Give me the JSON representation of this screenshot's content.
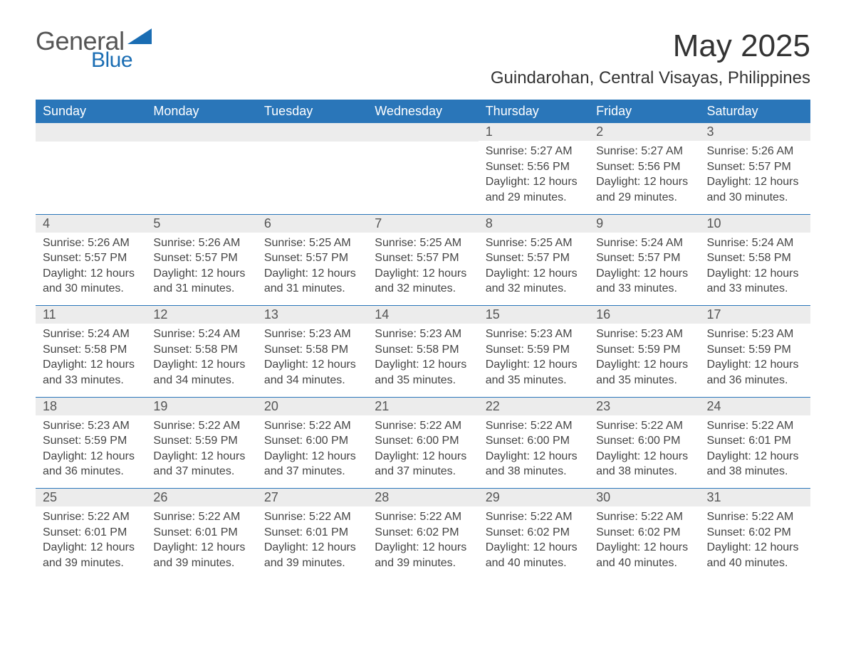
{
  "brand": {
    "general": "General",
    "blue": "Blue"
  },
  "colors": {
    "header_bg": "#2a76b9",
    "header_text": "#ffffff",
    "daynum_bg": "#ececec",
    "rule": "#2a76b9",
    "logo_general": "#555555",
    "logo_blue": "#1a6db3",
    "text": "#333333",
    "body_bg": "#ffffff"
  },
  "fonts": {
    "month_title_pt": 44,
    "location_pt": 24,
    "weekday_pt": 18,
    "daynum_pt": 18,
    "body_pt": 16
  },
  "title": {
    "month": "May 2025",
    "location": "Guindarohan, Central Visayas, Philippines"
  },
  "weekdays": [
    "Sunday",
    "Monday",
    "Tuesday",
    "Wednesday",
    "Thursday",
    "Friday",
    "Saturday"
  ],
  "weeks": [
    [
      null,
      null,
      null,
      null,
      {
        "n": "1",
        "sr": "Sunrise: 5:27 AM",
        "ss": "Sunset: 5:56 PM",
        "dl1": "Daylight: 12 hours",
        "dl2": "and 29 minutes."
      },
      {
        "n": "2",
        "sr": "Sunrise: 5:27 AM",
        "ss": "Sunset: 5:56 PM",
        "dl1": "Daylight: 12 hours",
        "dl2": "and 29 minutes."
      },
      {
        "n": "3",
        "sr": "Sunrise: 5:26 AM",
        "ss": "Sunset: 5:57 PM",
        "dl1": "Daylight: 12 hours",
        "dl2": "and 30 minutes."
      }
    ],
    [
      {
        "n": "4",
        "sr": "Sunrise: 5:26 AM",
        "ss": "Sunset: 5:57 PM",
        "dl1": "Daylight: 12 hours",
        "dl2": "and 30 minutes."
      },
      {
        "n": "5",
        "sr": "Sunrise: 5:26 AM",
        "ss": "Sunset: 5:57 PM",
        "dl1": "Daylight: 12 hours",
        "dl2": "and 31 minutes."
      },
      {
        "n": "6",
        "sr": "Sunrise: 5:25 AM",
        "ss": "Sunset: 5:57 PM",
        "dl1": "Daylight: 12 hours",
        "dl2": "and 31 minutes."
      },
      {
        "n": "7",
        "sr": "Sunrise: 5:25 AM",
        "ss": "Sunset: 5:57 PM",
        "dl1": "Daylight: 12 hours",
        "dl2": "and 32 minutes."
      },
      {
        "n": "8",
        "sr": "Sunrise: 5:25 AM",
        "ss": "Sunset: 5:57 PM",
        "dl1": "Daylight: 12 hours",
        "dl2": "and 32 minutes."
      },
      {
        "n": "9",
        "sr": "Sunrise: 5:24 AM",
        "ss": "Sunset: 5:57 PM",
        "dl1": "Daylight: 12 hours",
        "dl2": "and 33 minutes."
      },
      {
        "n": "10",
        "sr": "Sunrise: 5:24 AM",
        "ss": "Sunset: 5:58 PM",
        "dl1": "Daylight: 12 hours",
        "dl2": "and 33 minutes."
      }
    ],
    [
      {
        "n": "11",
        "sr": "Sunrise: 5:24 AM",
        "ss": "Sunset: 5:58 PM",
        "dl1": "Daylight: 12 hours",
        "dl2": "and 33 minutes."
      },
      {
        "n": "12",
        "sr": "Sunrise: 5:24 AM",
        "ss": "Sunset: 5:58 PM",
        "dl1": "Daylight: 12 hours",
        "dl2": "and 34 minutes."
      },
      {
        "n": "13",
        "sr": "Sunrise: 5:23 AM",
        "ss": "Sunset: 5:58 PM",
        "dl1": "Daylight: 12 hours",
        "dl2": "and 34 minutes."
      },
      {
        "n": "14",
        "sr": "Sunrise: 5:23 AM",
        "ss": "Sunset: 5:58 PM",
        "dl1": "Daylight: 12 hours",
        "dl2": "and 35 minutes."
      },
      {
        "n": "15",
        "sr": "Sunrise: 5:23 AM",
        "ss": "Sunset: 5:59 PM",
        "dl1": "Daylight: 12 hours",
        "dl2": "and 35 minutes."
      },
      {
        "n": "16",
        "sr": "Sunrise: 5:23 AM",
        "ss": "Sunset: 5:59 PM",
        "dl1": "Daylight: 12 hours",
        "dl2": "and 35 minutes."
      },
      {
        "n": "17",
        "sr": "Sunrise: 5:23 AM",
        "ss": "Sunset: 5:59 PM",
        "dl1": "Daylight: 12 hours",
        "dl2": "and 36 minutes."
      }
    ],
    [
      {
        "n": "18",
        "sr": "Sunrise: 5:23 AM",
        "ss": "Sunset: 5:59 PM",
        "dl1": "Daylight: 12 hours",
        "dl2": "and 36 minutes."
      },
      {
        "n": "19",
        "sr": "Sunrise: 5:22 AM",
        "ss": "Sunset: 5:59 PM",
        "dl1": "Daylight: 12 hours",
        "dl2": "and 37 minutes."
      },
      {
        "n": "20",
        "sr": "Sunrise: 5:22 AM",
        "ss": "Sunset: 6:00 PM",
        "dl1": "Daylight: 12 hours",
        "dl2": "and 37 minutes."
      },
      {
        "n": "21",
        "sr": "Sunrise: 5:22 AM",
        "ss": "Sunset: 6:00 PM",
        "dl1": "Daylight: 12 hours",
        "dl2": "and 37 minutes."
      },
      {
        "n": "22",
        "sr": "Sunrise: 5:22 AM",
        "ss": "Sunset: 6:00 PM",
        "dl1": "Daylight: 12 hours",
        "dl2": "and 38 minutes."
      },
      {
        "n": "23",
        "sr": "Sunrise: 5:22 AM",
        "ss": "Sunset: 6:00 PM",
        "dl1": "Daylight: 12 hours",
        "dl2": "and 38 minutes."
      },
      {
        "n": "24",
        "sr": "Sunrise: 5:22 AM",
        "ss": "Sunset: 6:01 PM",
        "dl1": "Daylight: 12 hours",
        "dl2": "and 38 minutes."
      }
    ],
    [
      {
        "n": "25",
        "sr": "Sunrise: 5:22 AM",
        "ss": "Sunset: 6:01 PM",
        "dl1": "Daylight: 12 hours",
        "dl2": "and 39 minutes."
      },
      {
        "n": "26",
        "sr": "Sunrise: 5:22 AM",
        "ss": "Sunset: 6:01 PM",
        "dl1": "Daylight: 12 hours",
        "dl2": "and 39 minutes."
      },
      {
        "n": "27",
        "sr": "Sunrise: 5:22 AM",
        "ss": "Sunset: 6:01 PM",
        "dl1": "Daylight: 12 hours",
        "dl2": "and 39 minutes."
      },
      {
        "n": "28",
        "sr": "Sunrise: 5:22 AM",
        "ss": "Sunset: 6:02 PM",
        "dl1": "Daylight: 12 hours",
        "dl2": "and 39 minutes."
      },
      {
        "n": "29",
        "sr": "Sunrise: 5:22 AM",
        "ss": "Sunset: 6:02 PM",
        "dl1": "Daylight: 12 hours",
        "dl2": "and 40 minutes."
      },
      {
        "n": "30",
        "sr": "Sunrise: 5:22 AM",
        "ss": "Sunset: 6:02 PM",
        "dl1": "Daylight: 12 hours",
        "dl2": "and 40 minutes."
      },
      {
        "n": "31",
        "sr": "Sunrise: 5:22 AM",
        "ss": "Sunset: 6:02 PM",
        "dl1": "Daylight: 12 hours",
        "dl2": "and 40 minutes."
      }
    ]
  ]
}
